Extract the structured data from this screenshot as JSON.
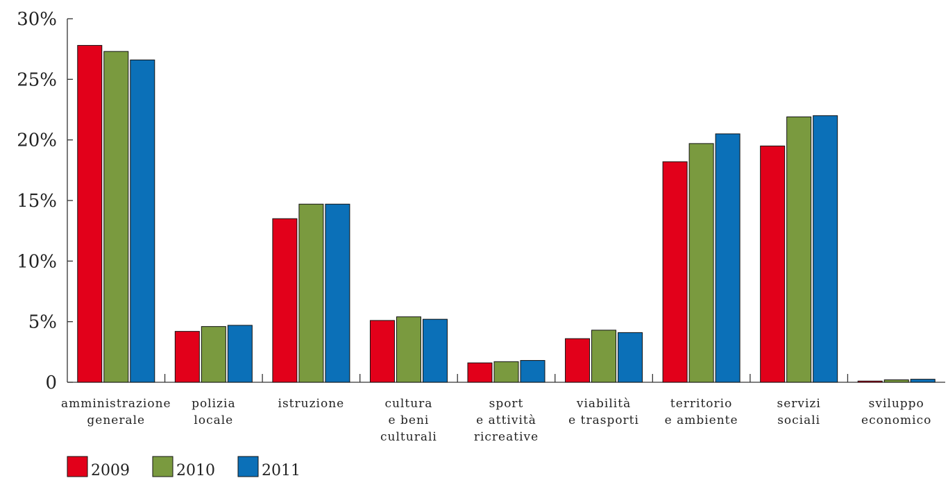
{
  "chart_data": {
    "type": "bar",
    "categories": [
      [
        "amministrazione",
        "generale"
      ],
      [
        "polizia",
        "locale"
      ],
      [
        "istruzione"
      ],
      [
        "cultura",
        "e beni",
        "culturali"
      ],
      [
        "sport",
        "e attività",
        "ricreative"
      ],
      [
        "viabilità",
        "e trasporti"
      ],
      [
        "territorio",
        "e ambiente"
      ],
      [
        "servizi",
        "sociali"
      ],
      [
        "sviluppo",
        "economico"
      ]
    ],
    "series": [
      {
        "name": "2009",
        "color": "#e2001a",
        "values": [
          27.8,
          4.2,
          13.5,
          5.1,
          1.6,
          3.6,
          18.2,
          19.5,
          0.1
        ]
      },
      {
        "name": "2010",
        "color": "#7a9a3f",
        "values": [
          27.3,
          4.6,
          14.7,
          5.4,
          1.7,
          4.3,
          19.7,
          21.9,
          0.2
        ]
      },
      {
        "name": "2011",
        "color": "#0b70b8",
        "values": [
          26.6,
          4.7,
          14.7,
          5.2,
          1.8,
          4.1,
          20.5,
          22.0,
          0.25
        ]
      }
    ],
    "y_ticks": [
      {
        "value": 0,
        "label": "0"
      },
      {
        "value": 5,
        "label": "5%"
      },
      {
        "value": 10,
        "label": "10%"
      },
      {
        "value": 15,
        "label": "15%"
      },
      {
        "value": 20,
        "label": "20%"
      },
      {
        "value": 25,
        "label": "25%"
      },
      {
        "value": 30,
        "label": "30%"
      }
    ],
    "ylim": [
      0,
      30
    ],
    "title": "",
    "xlabel": "",
    "ylabel": "",
    "grid": false,
    "legend_position": "bottom-left"
  }
}
